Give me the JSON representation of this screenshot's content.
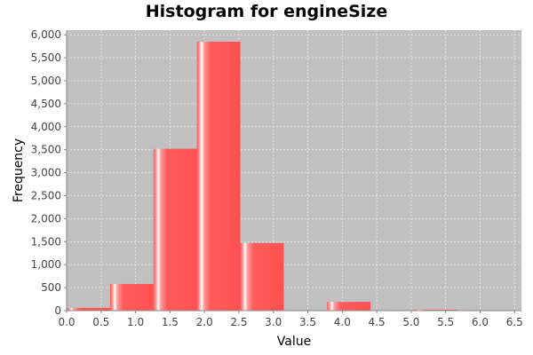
{
  "chart_data": {
    "type": "bar",
    "title": "Histogram for engineSize",
    "xlabel": "Value",
    "ylabel": "Frequency",
    "xlim": [
      0.0,
      6.6
    ],
    "ylim": [
      0,
      6100
    ],
    "x_ticks": [
      "0.0",
      "0.5",
      "1.0",
      "1.5",
      "2.0",
      "2.5",
      "3.0",
      "3.5",
      "4.0",
      "4.5",
      "5.0",
      "5.5",
      "6.0",
      "6.5"
    ],
    "y_ticks": [
      "0",
      "500",
      "1,000",
      "1,500",
      "2,000",
      "2,500",
      "3,000",
      "3,500",
      "4,000",
      "4,500",
      "5,000",
      "5,500",
      "6,000"
    ],
    "grid": true,
    "bins": [
      {
        "start": 0.0,
        "end": 0.63,
        "value": 60
      },
      {
        "start": 0.63,
        "end": 1.26,
        "value": 580
      },
      {
        "start": 1.26,
        "end": 1.89,
        "value": 3520
      },
      {
        "start": 1.89,
        "end": 2.52,
        "value": 5850
      },
      {
        "start": 2.52,
        "end": 3.15,
        "value": 1470
      },
      {
        "start": 3.15,
        "end": 3.78,
        "value": 10
      },
      {
        "start": 3.78,
        "end": 4.41,
        "value": 190
      },
      {
        "start": 4.41,
        "end": 5.04,
        "value": 0
      },
      {
        "start": 5.04,
        "end": 5.67,
        "value": 20
      },
      {
        "start": 5.67,
        "end": 6.3,
        "value": 0
      },
      {
        "start": 6.3,
        "end": 6.6,
        "value": 0
      }
    ],
    "colors": {
      "bar": "#ff5555",
      "bar_highlight": "#ffffff",
      "plot_bg": "#c0c0c0",
      "grid": "#e8e8e8"
    }
  }
}
